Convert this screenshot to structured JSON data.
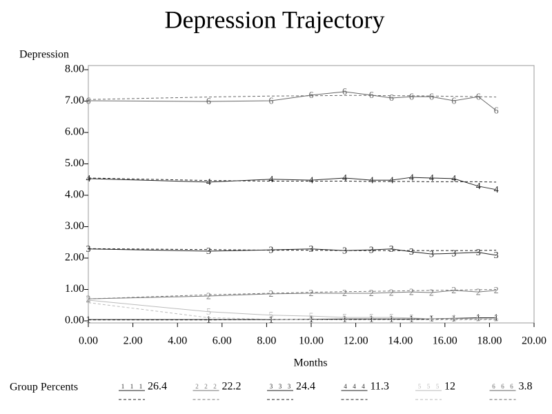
{
  "chart_data": {
    "type": "line",
    "title": "Depression Trajectory",
    "y_label": "Depression",
    "x_label": "Months",
    "legend_title": "Group Percents",
    "x": [
      0,
      5.4,
      8.2,
      10,
      11.5,
      12.7,
      13.6,
      14.5,
      15.4,
      16.4,
      17.5,
      18.3
    ],
    "xlim": [
      0,
      20
    ],
    "xticks": [
      {
        "value": 0,
        "label": "0.00"
      },
      {
        "value": 2,
        "label": "2.00"
      },
      {
        "value": 4,
        "label": "4.00"
      },
      {
        "value": 6,
        "label": "6.00"
      },
      {
        "value": 8,
        "label": "8.00"
      },
      {
        "value": 10,
        "label": "10.00"
      },
      {
        "value": 12,
        "label": "12.00"
      },
      {
        "value": 14,
        "label": "14.00"
      },
      {
        "value": 16,
        "label": "16.00"
      },
      {
        "value": 18,
        "label": "18.00"
      },
      {
        "value": 20,
        "label": "20.00"
      }
    ],
    "ylim": [
      0,
      8
    ],
    "yticks": [
      {
        "value": 0,
        "label": "0.00"
      },
      {
        "value": 1,
        "label": "1.00"
      },
      {
        "value": 2,
        "label": "2.00"
      },
      {
        "value": 3,
        "label": "3.00"
      },
      {
        "value": 4,
        "label": "4.00"
      },
      {
        "value": 5,
        "label": "5.00"
      },
      {
        "value": 6,
        "label": "6.00"
      },
      {
        "value": 7,
        "label": "7.00"
      },
      {
        "value": 8,
        "label": "8.00"
      }
    ],
    "series": [
      {
        "name": "1",
        "percent": 26.4,
        "color": "#222222",
        "values": [
          0.04,
          0.04,
          0.04,
          0.05,
          0.06,
          0.06,
          0.06,
          0.06,
          0.07,
          0.08,
          0.1,
          0.1
        ],
        "predicted": [
          0.03,
          0.03,
          0.04,
          0.04,
          0.04,
          0.05,
          0.05,
          0.05,
          0.05,
          0.06,
          0.06,
          0.06
        ]
      },
      {
        "name": "2",
        "percent": 22.2,
        "color": "#777777",
        "values": [
          0.7,
          0.79,
          0.86,
          0.88,
          0.88,
          0.88,
          0.9,
          0.92,
          0.9,
          0.97,
          0.92,
          0.97
        ],
        "predicted": [
          0.7,
          0.83,
          0.88,
          0.91,
          0.93,
          0.94,
          0.95,
          0.96,
          0.97,
          0.98,
          0.99,
          1.0
        ]
      },
      {
        "name": "3",
        "percent": 24.4,
        "color": "#222222",
        "values": [
          2.29,
          2.22,
          2.26,
          2.29,
          2.24,
          2.26,
          2.29,
          2.2,
          2.13,
          2.15,
          2.18,
          2.09
        ],
        "predicted": [
          2.3,
          2.27,
          2.25,
          2.25,
          2.24,
          2.24,
          2.24,
          2.24,
          2.24,
          2.24,
          2.24,
          2.25
        ]
      },
      {
        "name": "4",
        "percent": 11.3,
        "color": "#222222",
        "values": [
          4.53,
          4.42,
          4.51,
          4.48,
          4.55,
          4.48,
          4.48,
          4.57,
          4.55,
          4.53,
          4.29,
          4.18
        ],
        "predicted": [
          4.55,
          4.47,
          4.45,
          4.45,
          4.45,
          4.44,
          4.44,
          4.44,
          4.43,
          4.43,
          4.43,
          4.42
        ]
      },
      {
        "name": "5",
        "percent": 12.0,
        "color": "#bbbbbb",
        "values": [
          0.66,
          0.29,
          0.18,
          0.15,
          0.11,
          0.11,
          0.11,
          0.09,
          0.07,
          0.07,
          0.07,
          0.07
        ],
        "predicted": [
          0.58,
          0.1,
          0.05,
          0.04,
          0.03,
          0.03,
          0.03,
          0.03,
          0.03,
          0.03,
          0.03,
          0.03
        ]
      },
      {
        "name": "6",
        "percent": 3.8,
        "color": "#666666",
        "values": [
          7.01,
          6.99,
          7.01,
          7.19,
          7.3,
          7.19,
          7.1,
          7.14,
          7.14,
          7.01,
          7.14,
          6.7
        ],
        "predicted": [
          7.05,
          7.13,
          7.16,
          7.17,
          7.18,
          7.18,
          7.17,
          7.17,
          7.16,
          7.15,
          7.14,
          7.13
        ]
      }
    ]
  }
}
